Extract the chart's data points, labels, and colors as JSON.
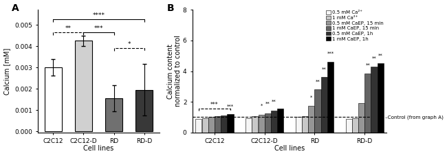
{
  "panel_A": {
    "categories": [
      "C2C12",
      "C2C12-D",
      "RD",
      "RD-D"
    ],
    "values": [
      0.003,
      0.00425,
      0.00155,
      0.00195
    ],
    "errors": [
      0.0004,
      0.00025,
      0.0006,
      0.0012
    ],
    "bar_colors": [
      "#ffffff",
      "#d0d0d0",
      "#707070",
      "#383838"
    ],
    "bar_edgecolor": "#000000",
    "ylabel": "Calcium [mM]",
    "xlabel": "Cell lines",
    "ylim": [
      -5e-05,
      0.0057
    ],
    "yticks": [
      0.0,
      0.001,
      0.002,
      0.003,
      0.004,
      0.005
    ],
    "title": "A"
  },
  "panel_B": {
    "categories": [
      "C2C12",
      "C2C12-D",
      "RD",
      "RD-D"
    ],
    "series_labels": [
      "0.5 mM Ca²⁺",
      "1 mM Ca²⁺",
      "0.5 mM CaEP, 15 min",
      "1 mM CaEP, 15 min",
      "0.5 mM CaEP, 1h",
      "1 mM CaEP, 1h"
    ],
    "series_colors": [
      "#f5f5f5",
      "#c8c8c8",
      "#969696",
      "#646464",
      "#323232",
      "#000000"
    ],
    "values": [
      [
        0.88,
        0.92,
        1.0,
        0.88
      ],
      [
        0.95,
        1.05,
        1.05,
        0.95
      ],
      [
        1.0,
        1.15,
        1.75,
        1.9
      ],
      [
        1.05,
        1.25,
        2.8,
        3.85
      ],
      [
        1.1,
        1.4,
        3.6,
        4.3
      ],
      [
        1.2,
        1.55,
        4.6,
        4.5
      ]
    ],
    "ylabel": "Calcium content\nnormalized to control",
    "xlabel": "Cell lines",
    "ylim": [
      0,
      8
    ],
    "yticks": [
      0,
      2,
      4,
      6,
      8
    ],
    "dashed_line_y": 1.0,
    "dashed_label": "–Control (from graph A)",
    "title": "B",
    "sig_annotations": [
      {
        "group": 0,
        "series": 5,
        "y": 1.55,
        "text": "***"
      },
      {
        "group": 1,
        "series": 2,
        "y": 1.6,
        "text": "*"
      },
      {
        "group": 1,
        "series": 3,
        "y": 1.75,
        "text": "**"
      },
      {
        "group": 1,
        "series": 4,
        "y": 1.9,
        "text": "**"
      },
      {
        "group": 2,
        "series": 2,
        "y": 2.15,
        "text": "*"
      },
      {
        "group": 2,
        "series": 3,
        "y": 3.2,
        "text": "**"
      },
      {
        "group": 2,
        "series": 4,
        "y": 4.0,
        "text": "**"
      },
      {
        "group": 2,
        "series": 5,
        "y": 5.0,
        "text": "***"
      },
      {
        "group": 3,
        "series": 3,
        "y": 4.25,
        "text": "**"
      },
      {
        "group": 3,
        "series": 4,
        "y": 4.7,
        "text": "**"
      },
      {
        "group": 3,
        "series": 5,
        "y": 4.9,
        "text": "**"
      }
    ],
    "bracket": {
      "g": 0,
      "s1": 0,
      "s2": 5,
      "y": 1.55,
      "text": "***"
    }
  }
}
